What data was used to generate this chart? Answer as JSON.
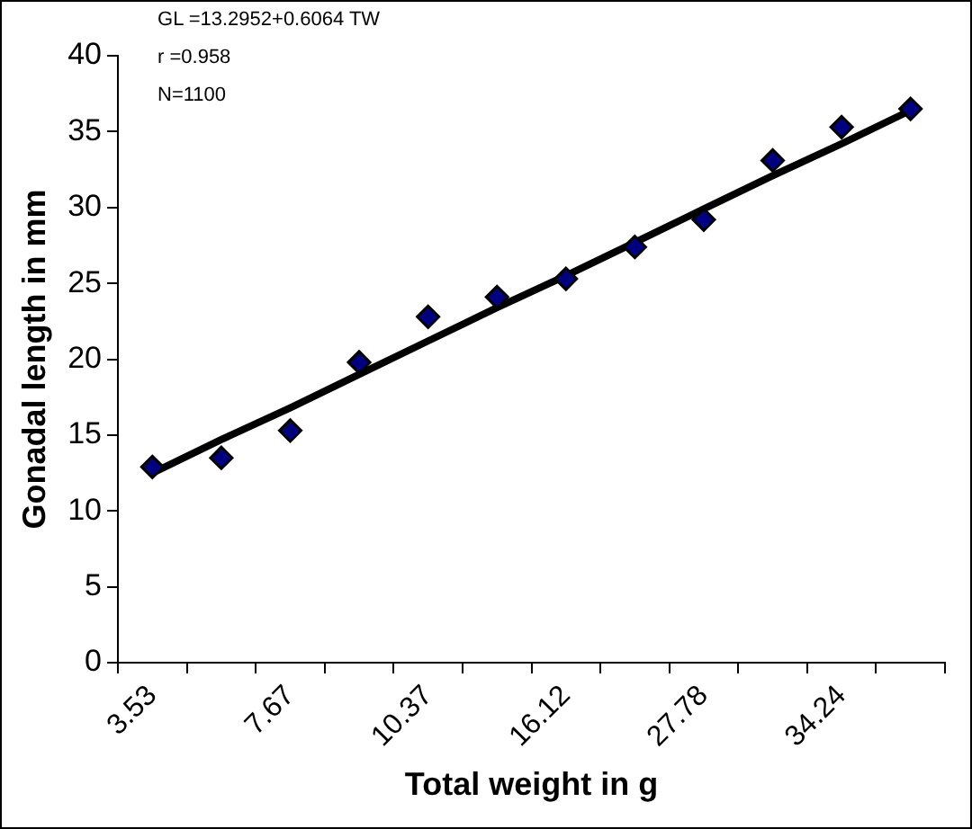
{
  "chart_data": {
    "type": "scatter",
    "xlabel": "Total weight in g",
    "ylabel": "Gonadal length in mm",
    "categories": [
      "3.53",
      null,
      "7.67",
      null,
      "10.37",
      null,
      "16.12",
      null,
      "27.78",
      null,
      "34.24",
      null
    ],
    "series": [
      {
        "color": "#000080",
        "marker": "diamond",
        "values": [
          12.9,
          13.5,
          15.3,
          19.8,
          22.8,
          24.1,
          25.3,
          27.4,
          29.2,
          33.1,
          35.3,
          36.5
        ]
      },
      {
        "type": "line",
        "color": "#000000",
        "marker": "none",
        "values": [
          12.5,
          14.7,
          16.8,
          19.0,
          21.2,
          23.4,
          25.5,
          27.7,
          29.9,
          32.1,
          34.2,
          36.4
        ]
      }
    ],
    "ylim": [
      0,
      40
    ],
    "yticks": [
      0,
      5,
      10,
      15,
      20,
      25,
      30,
      35,
      40
    ],
    "grid": false,
    "legend": false,
    "annotations": [
      "GL =13.2952+0.6064 TW",
      "r =0.958",
      "N=1100"
    ]
  }
}
